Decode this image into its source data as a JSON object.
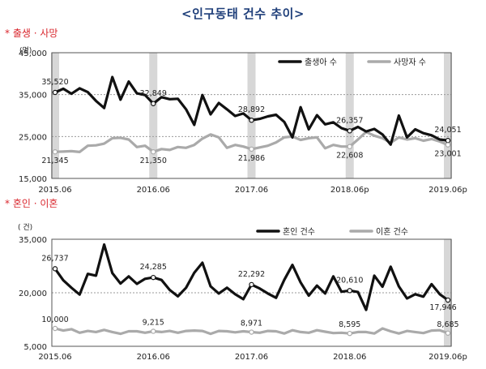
{
  "page_title": "<인구동태 건수 추이>",
  "chart_data": [
    {
      "type": "line",
      "section_label": "* 출생 · 사망",
      "unit_label": "(명)",
      "ylim": [
        15000,
        45000
      ],
      "yticks": [
        "45,000",
        "35,000",
        "25,000",
        "15,000"
      ],
      "ytick_values": [
        45000,
        35000,
        25000,
        15000
      ],
      "xtick_labels": [
        "2015.06",
        "2016.06",
        "2017.06",
        "2018.06p",
        "2019.06p"
      ],
      "xtick_index": [
        0,
        12,
        24,
        36,
        48
      ],
      "shaded_index": [
        0,
        12,
        24,
        36,
        48
      ],
      "grid": true,
      "legend_position": "top-right",
      "series": [
        {
          "name": "출생아 수",
          "color": "#111111",
          "values": [
            35520,
            36400,
            35200,
            36500,
            35600,
            33500,
            31800,
            39200,
            33800,
            38100,
            35300,
            34900,
            32849,
            34400,
            33900,
            34000,
            31500,
            27800,
            34900,
            30300,
            33000,
            31500,
            29900,
            30500,
            28892,
            29200,
            29800,
            30200,
            28500,
            24800,
            32000,
            26700,
            30100,
            27900,
            28400,
            27000,
            26357,
            27300,
            26200,
            26800,
            25500,
            23100,
            30000,
            24800,
            26700,
            25800,
            25300,
            24300,
            24051
          ],
          "labels": [
            {
              "index": 0,
              "text": "35,520"
            },
            {
              "index": 12,
              "text": "32,849"
            },
            {
              "index": 24,
              "text": "28,892"
            },
            {
              "index": 36,
              "text": "26,357"
            },
            {
              "index": 48,
              "text": "24,051"
            }
          ]
        },
        {
          "name": "사망자 수",
          "color": "#aaaaaa",
          "values": [
            21345,
            21400,
            21500,
            21300,
            22800,
            22900,
            23300,
            24600,
            24700,
            24300,
            22500,
            22800,
            21350,
            22000,
            21800,
            22500,
            22300,
            23000,
            24500,
            25500,
            24800,
            22300,
            23000,
            22600,
            21986,
            22400,
            22800,
            23600,
            24800,
            25000,
            24200,
            24600,
            24800,
            22200,
            23000,
            22600,
            22608,
            24300,
            26100,
            25200,
            24600,
            23500,
            24800,
            24300,
            24600,
            24000,
            24400,
            23800,
            23001
          ],
          "labels": [
            {
              "index": 0,
              "text": "21,345"
            },
            {
              "index": 12,
              "text": "21,350"
            },
            {
              "index": 24,
              "text": "21,986"
            },
            {
              "index": 36,
              "text": "22,608"
            },
            {
              "index": 48,
              "text": "23,001"
            }
          ]
        }
      ]
    },
    {
      "type": "line",
      "section_label": "* 혼인 · 이혼",
      "unit_label": "( 건)",
      "ylim": [
        5000,
        35000
      ],
      "yticks": [
        "35,000",
        "20,000",
        "5,000"
      ],
      "ytick_values": [
        35000,
        20000,
        5000
      ],
      "xtick_labels": [
        "2015.06",
        "2016.06",
        "2017.06",
        "2018.06",
        "2019.06p"
      ],
      "xtick_index": [
        0,
        12,
        24,
        36,
        48
      ],
      "shaded_index": [
        48
      ],
      "grid": true,
      "legend_position": "top-right",
      "series": [
        {
          "name": "혼인 건수",
          "color": "#111111",
          "values": [
            26737,
            23500,
            21400,
            19500,
            25300,
            24800,
            33500,
            25500,
            22600,
            24600,
            22500,
            23900,
            24285,
            23600,
            20800,
            19000,
            21400,
            25600,
            28400,
            21800,
            19800,
            21400,
            19600,
            18200,
            22292,
            21200,
            19800,
            18600,
            23600,
            27800,
            22900,
            19200,
            22000,
            19800,
            24600,
            20300,
            20610,
            20200,
            15200,
            24800,
            21700,
            27300,
            21800,
            18400,
            19600,
            18900,
            22400,
            19600,
            17946
          ],
          "labels": [
            {
              "index": 0,
              "text": "26,737"
            },
            {
              "index": 12,
              "text": "24,285"
            },
            {
              "index": 24,
              "text": "22,292"
            },
            {
              "index": 36,
              "text": "20,610"
            },
            {
              "index": 48,
              "text": "17,946"
            }
          ]
        },
        {
          "name": "이혼 건수",
          "color": "#aaaaaa",
          "values": [
            10000,
            9400,
            9800,
            8800,
            9300,
            9000,
            9600,
            9000,
            8500,
            9200,
            9200,
            8800,
            9215,
            9000,
            9300,
            8800,
            9300,
            9400,
            9300,
            8500,
            9300,
            9200,
            8900,
            9200,
            8971,
            8800,
            9300,
            9200,
            8600,
            9500,
            9000,
            8800,
            9500,
            9100,
            8700,
            8800,
            8595,
            9000,
            9000,
            8600,
            10000,
            9200,
            8600,
            9300,
            9000,
            8700,
            9400,
            9500,
            8685
          ],
          "labels": [
            {
              "index": 0,
              "text": "10,000"
            },
            {
              "index": 12,
              "text": "9,215"
            },
            {
              "index": 24,
              "text": "8,971"
            },
            {
              "index": 36,
              "text": "8,595"
            },
            {
              "index": 48,
              "text": "8,685"
            }
          ]
        }
      ]
    }
  ]
}
